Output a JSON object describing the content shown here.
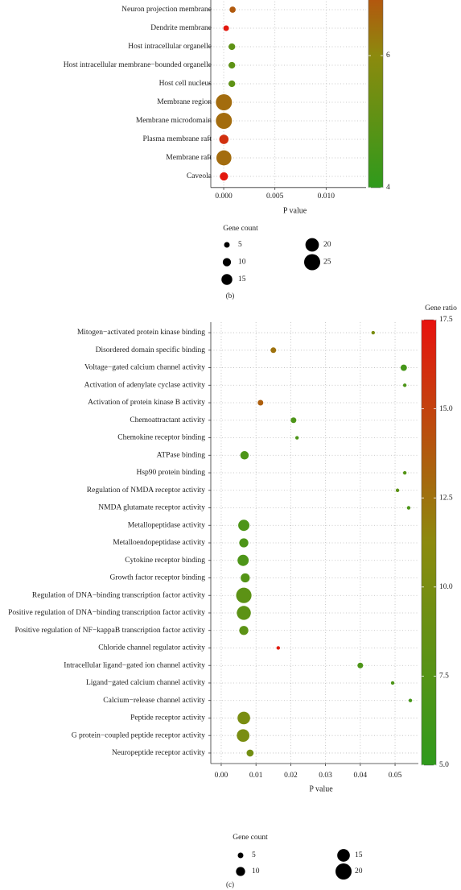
{
  "chart_data": [
    {
      "type": "scatter",
      "categories": [
        "Neuron projection membrane",
        "Dendrite membrane",
        "Host intracellular organelle",
        "Host intracellular membrane−bounded organelle",
        "Host cell nucleus",
        "Membrane region",
        "Membrane microdomain",
        "Plasma membrane raft",
        "Membrane raft",
        "Caveola"
      ],
      "values": [
        0.00087,
        0.00024,
        0.0008,
        0.0008,
        0.0008,
        2e-05,
        2e-05,
        2e-05,
        2e-05,
        2e-05
      ],
      "sizes": [
        6,
        5,
        7,
        7,
        7,
        25,
        25,
        12,
        23,
        10
      ],
      "color_values": [
        6.8,
        7.9,
        5.0,
        5.0,
        5.0,
        6.5,
        6.5,
        7.5,
        6.5,
        7.9
      ],
      "xlim": [
        -0.00126,
        0.0139
      ],
      "xticks": [
        {
          "value": 0,
          "label": "0.000"
        },
        0.005,
        {
          "value": 0.01,
          "label": "0.010"
        }
      ],
      "xlabel": "P value",
      "clim": [
        4,
        8
      ],
      "cticks": [
        4,
        6
      ],
      "color_scale": [
        "#2f9a1c",
        "#8c8a0e",
        "#e8120e"
      ],
      "size_legend": {
        "title": "Gene count",
        "values": [
          5,
          10,
          15,
          20,
          25
        ]
      },
      "grid": true,
      "caption": "(b)"
    },
    {
      "type": "scatter",
      "categories": [
        "Mitogen−activated protein kinase binding",
        "Disordered domain specific binding",
        "Voltage−gated calcium channel activity",
        "Activation of adenylate cyclase activity",
        "Activation of protein kinase B activity",
        "Chemoattractant activity",
        "Chemokine receptor binding",
        "ATPase binding",
        "Hsp90 protein binding",
        "Regulation of NMDA receptor activity",
        "NMDA glutamate receptor activity",
        "Metallopeptidase activity",
        "Metalloendopeptidase activity",
        "Cytokine receptor binding",
        "Growth factor receptor binding",
        "Regulation of DNA−binding transcription factor activity",
        "Positive regulation of DNA−binding transcription factor activity",
        "Positive regulation of NF−kappaB transcription factor activity",
        "Chloride channel regulator activity",
        "Intracellular ligand−gated ion channel activity",
        "Ligand−gated calcium channel activity",
        "Calcium−release channel activity",
        "Peptide receptor activity",
        "G protein−coupled peptide receptor activity",
        "Neuropeptide receptor activity"
      ],
      "values": [
        0.0437,
        0.015,
        0.0525,
        0.0528,
        0.0113,
        0.0208,
        0.0218,
        0.0067,
        0.0528,
        0.0507,
        0.0539,
        0.0065,
        0.0065,
        0.0063,
        0.0069,
        0.0065,
        0.0065,
        0.0065,
        0.0164,
        0.04,
        0.0493,
        0.0544,
        0.0065,
        0.0063,
        0.0083
      ],
      "sizes": [
        2,
        5,
        6,
        2,
        5,
        5,
        2,
        9,
        2,
        2,
        2,
        13,
        10,
        13,
        10,
        19,
        17,
        10,
        2,
        5,
        2,
        2,
        15,
        15,
        7
      ],
      "color_values": [
        10,
        12.5,
        6.5,
        7,
        13.5,
        7,
        7,
        7,
        7.5,
        8,
        7,
        7,
        7,
        7,
        7.5,
        8,
        8,
        8,
        17,
        7,
        7,
        6.5,
        10,
        10,
        9.5
      ],
      "xlim": [
        -0.003,
        0.0567
      ],
      "xticks": [
        {
          "value": 0,
          "label": "0.00"
        },
        0.01,
        0.02,
        0.03,
        0.04,
        0.05
      ],
      "xlabel": "P value",
      "clim": [
        5,
        17.5
      ],
      "cticks": [
        {
          "value": 5,
          "label": "5.0"
        },
        7.5,
        {
          "value": 10,
          "label": "10.0"
        },
        12.5,
        {
          "value": 15,
          "label": "15.0"
        },
        17.5
      ],
      "color_title": "Gene ratio",
      "color_scale": [
        "#2f9a1c",
        "#8c8a0e",
        "#e8120e"
      ],
      "size_legend": {
        "title": "Gene count",
        "values": [
          5,
          10,
          15,
          20
        ]
      },
      "grid": true,
      "caption": "(c)"
    }
  ]
}
